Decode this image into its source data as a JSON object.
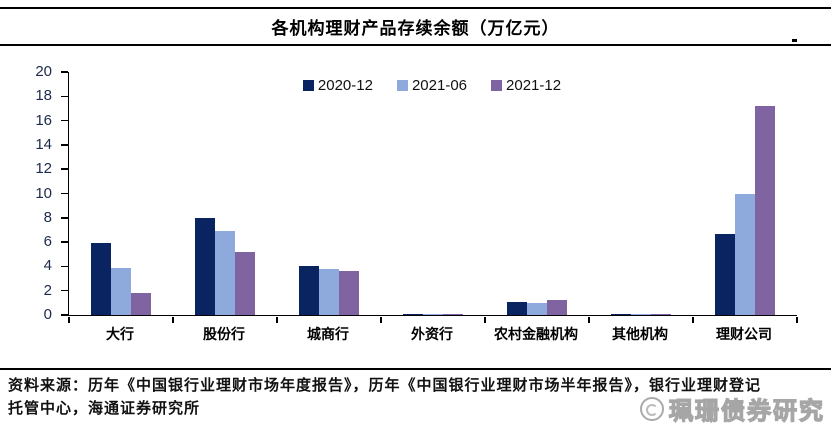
{
  "title": "各机构理财产品存续余额（万亿元）",
  "footer": {
    "lines": [
      "资料来源：历年《中国银行业理财市场年度报告》，历年《中国银行业理财市场半年报告》，银行业理财登记",
      "托管中心，海通证券研究所"
    ]
  },
  "watermark": {
    "label": "珮珊债券研究",
    "logo": "circle-logo-icon"
  },
  "colors": {
    "series_2020_12": "#0a2361",
    "series_2021_06": "#8ea9db",
    "series_2021_12": "#8064a2",
    "axis": "#000000",
    "tick_label": "#1b2a4a"
  },
  "chart_data": {
    "type": "bar",
    "title": "各机构理财产品存续余额（万亿元）",
    "categories": [
      "大行",
      "股份行",
      "城商行",
      "外资行",
      "农村金融机构",
      "其他机构",
      "理财公司"
    ],
    "series": [
      {
        "name": "2020-12",
        "color": "#0a2361",
        "values": [
          5.9,
          8.0,
          4.0,
          0.06,
          1.1,
          0.03,
          6.7
        ]
      },
      {
        "name": "2021-06",
        "color": "#8ea9db",
        "values": [
          3.9,
          6.9,
          3.8,
          0.05,
          1.0,
          0.06,
          10.0
        ]
      },
      {
        "name": "2021-12",
        "color": "#8064a2",
        "values": [
          1.8,
          5.2,
          3.6,
          0.05,
          1.2,
          0.07,
          17.2
        ]
      }
    ],
    "xlabel": "",
    "ylabel": "",
    "ylim": [
      0,
      20
    ],
    "ytick_step": 2,
    "grid": false,
    "legend_position": "top-center"
  }
}
